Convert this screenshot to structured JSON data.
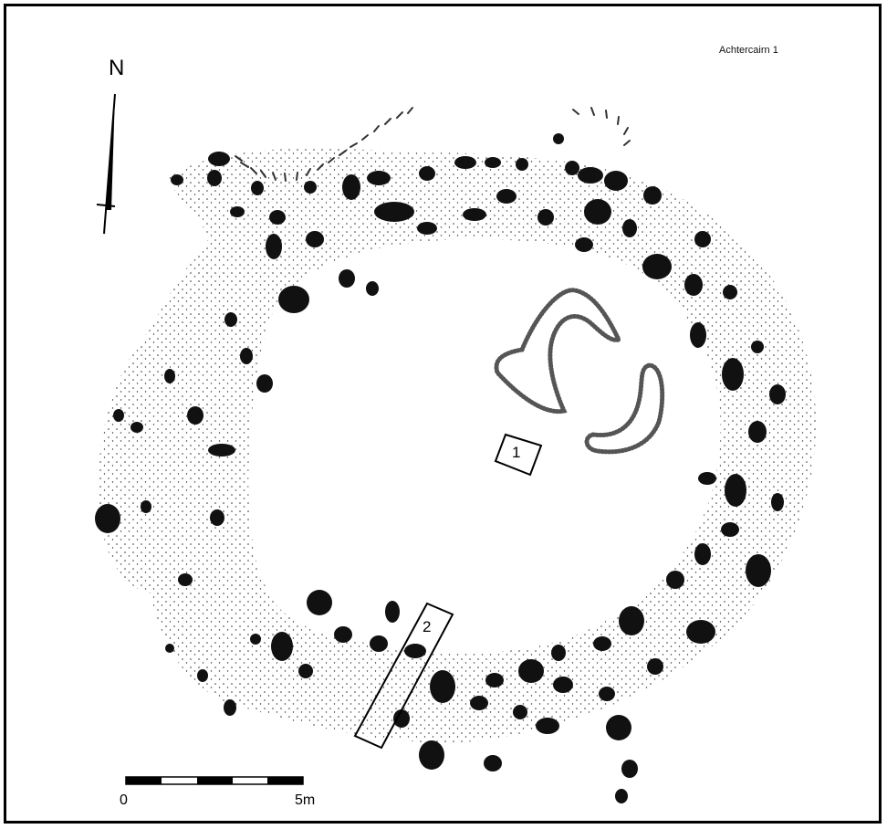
{
  "site_name": "Achtercairn 1",
  "north_arrow": {
    "label": "N"
  },
  "scale_bar": {
    "start_label": "0",
    "end_label": "5m"
  },
  "trenches": [
    {
      "label": "1"
    },
    {
      "label": "2"
    }
  ],
  "colors": {
    "stone": "#111111",
    "stipple": "#333333",
    "outline": "#000000"
  }
}
